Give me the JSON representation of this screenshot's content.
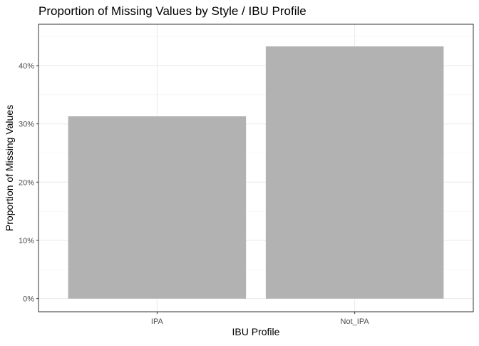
{
  "chart_data": {
    "type": "bar",
    "title": "Proportion of Missing Values by Style / IBU Profile",
    "xlabel": "IBU Profile",
    "ylabel": "Proportion of Missing Values",
    "categories": [
      "IPA",
      "Not_IPA"
    ],
    "values": [
      0.313,
      0.433
    ],
    "ylim": [
      -0.0225,
      0.471
    ],
    "yticks": [
      0,
      0.1,
      0.2,
      0.3,
      0.4
    ],
    "ytick_labels": [
      "0%",
      "10%",
      "20%",
      "30%",
      "40%"
    ],
    "grid": true,
    "legend": "none",
    "colors": {
      "bar": "#b2b2b2",
      "grid_major": "#ebebeb",
      "grid_minor": "#f3f3f3",
      "panel_border": "#333333",
      "tick_text": "#4d4d4d",
      "title_text": "#000000"
    }
  }
}
